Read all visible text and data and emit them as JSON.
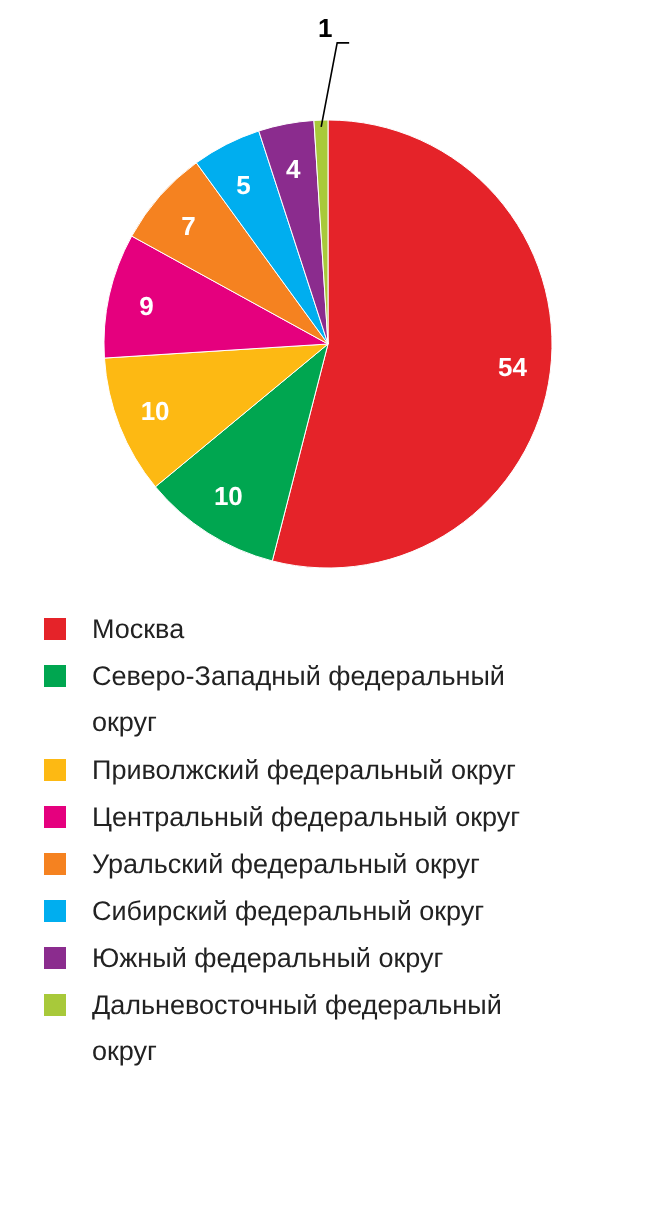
{
  "chart_data": {
    "type": "pie",
    "categories": [
      "Москва",
      "Северо-Западный федеральный округ",
      "Приволжский федеральный округ",
      "Центральный федеральный округ",
      "Уральский федеральный округ",
      "Сибирский федеральный округ",
      "Южный федеральный округ",
      "Дальневосточный федеральный округ"
    ],
    "values": [
      54,
      10,
      10,
      9,
      7,
      5,
      4,
      1
    ],
    "colors": [
      "#e52329",
      "#00a650",
      "#fdb913",
      "#e5007e",
      "#f58220",
      "#00aeef",
      "#8b2c8e",
      "#a8c93a"
    ],
    "data_labels": true,
    "legend": "bottom"
  }
}
